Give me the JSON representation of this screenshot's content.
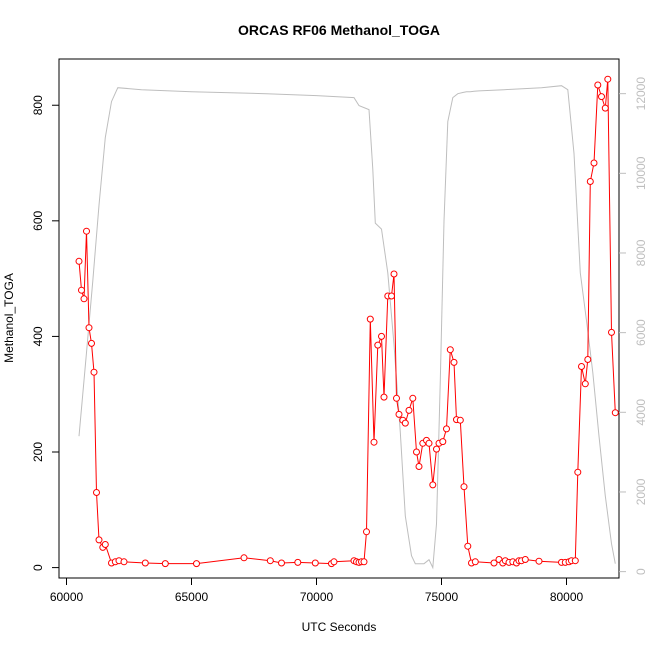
{
  "chart_data": {
    "type": "line",
    "title": "ORCAS RF06 Methanol_TOGA",
    "xlabel": "UTC Seconds",
    "ylabel": "Methanol_TOGA",
    "xlim": [
      59700,
      82100
    ],
    "ylim": [
      -18,
      880
    ],
    "y2lim": [
      -160,
      12870
    ],
    "x_ticks": [
      60000,
      65000,
      70000,
      75000,
      80000
    ],
    "y_ticks": [
      0,
      200,
      400,
      600,
      800
    ],
    "y2_ticks": [
      0,
      2000,
      4000,
      6000,
      8000,
      10000,
      12000
    ],
    "grid": false,
    "colors": {
      "primary": "#ff0000",
      "secondary": "#bebebe",
      "axis": "#000000"
    },
    "series": [
      {
        "x": [
          60500,
          60600,
          60700,
          60800,
          60900,
          61000,
          61100,
          61200,
          61300,
          61450,
          61550,
          61800,
          61950,
          62100,
          62300,
          63150,
          63950,
          65200,
          67100,
          68150,
          68600,
          69250,
          69950,
          70600,
          70700,
          71500,
          71600,
          71700,
          71800,
          71900,
          72000,
          72150,
          72300,
          72450,
          72600,
          72700,
          72850,
          73000,
          73100,
          73200,
          73300,
          73450,
          73550,
          73700,
          73850,
          74000,
          74100,
          74250,
          74400,
          74500,
          74650,
          74800,
          74900,
          75050,
          75200,
          75350,
          75500,
          75600,
          75750,
          75900,
          76050,
          76200,
          76350,
          77100,
          77300,
          77450,
          77550,
          77700,
          77850,
          78000,
          78100,
          78200,
          78350,
          78900,
          79800,
          79950,
          80100,
          80200,
          80350,
          80450,
          80600,
          80750,
          80850,
          80950,
          81100,
          81250,
          81400,
          81550,
          81650,
          81800,
          81950
        ],
        "y": [
          530,
          480,
          465,
          582,
          415,
          388,
          338,
          130,
          48,
          35,
          40,
          8,
          10,
          12,
          10,
          8,
          7,
          7,
          17,
          12,
          8,
          9,
          8,
          7,
          10,
          12,
          10,
          9,
          10,
          10,
          62,
          430,
          217,
          385,
          400,
          295,
          470,
          470,
          508,
          293,
          265,
          255,
          250,
          272,
          293,
          200,
          175,
          215,
          220,
          215,
          143,
          205,
          215,
          218,
          240,
          377,
          355,
          256,
          255,
          140,
          37,
          8,
          10,
          8,
          14,
          8,
          12,
          9,
          10,
          8,
          12,
          12,
          14,
          11,
          9,
          9,
          10,
          12,
          12,
          165,
          348,
          318,
          360,
          668,
          700,
          835,
          815,
          795,
          845,
          407,
          268
        ]
      },
      {
        "x": [
          60500,
          60800,
          61050,
          61300,
          61550,
          61800,
          62050,
          63000,
          65000,
          68000,
          70000,
          71500,
          71600,
          71700,
          72100,
          72250,
          72350,
          72600,
          72850,
          73100,
          73350,
          73550,
          73800,
          73950,
          74100,
          74300,
          74500,
          74650,
          74800,
          74950,
          75100,
          75250,
          75450,
          75650,
          75850,
          76000,
          76150,
          76300,
          76500,
          77500,
          79000,
          79800,
          80050,
          80300,
          80550,
          80800,
          81050,
          81300,
          81550,
          81800,
          81950
        ],
        "y": [
          3400,
          5500,
          7300,
          9200,
          10900,
          11800,
          12150,
          12100,
          12050,
          12000,
          11950,
          11900,
          11800,
          11700,
          11600,
          10100,
          8750,
          8600,
          7500,
          5700,
          3500,
          1400,
          400,
          200,
          200,
          200,
          300,
          100,
          1200,
          4800,
          8800,
          11300,
          11900,
          12000,
          12030,
          12050,
          12050,
          12060,
          12070,
          12100,
          12150,
          12200,
          12100,
          10500,
          7500,
          6300,
          5000,
          3400,
          1900,
          700,
          200
        ]
      }
    ]
  }
}
